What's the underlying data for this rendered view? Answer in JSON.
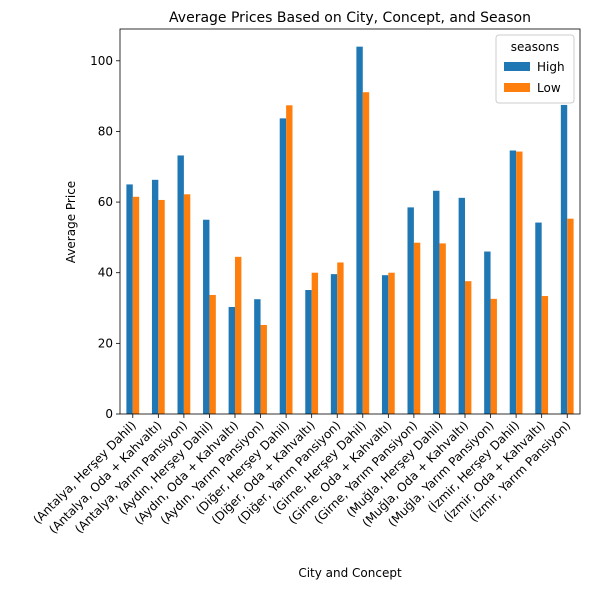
{
  "chart_data": {
    "type": "bar",
    "title": "Average Prices Based on City, Concept, and Season",
    "xlabel": "City and Concept",
    "ylabel": "Average Price",
    "ylim": [
      0,
      109
    ],
    "yticks": [
      0,
      20,
      40,
      60,
      80,
      100
    ],
    "grid": false,
    "legend": {
      "title": "seasons",
      "placement": "top-right"
    },
    "categories": [
      "(Antalya, Herşey Dahil)",
      "(Antalya, Oda + Kahvaltı)",
      "(Antalya, Yarım Pansiyon)",
      "(Aydın, Herşey Dahil)",
      "(Aydın, Oda + Kahvaltı)",
      "(Aydın, Yarım Pansiyon)",
      "(Diğer, Herşey Dahil)",
      "(Diğer, Oda + Kahvaltı)",
      "(Diğer, Yarım Pansiyon)",
      "(Girne, Herşey Dahil)",
      "(Girne, Oda + Kahvaltı)",
      "(Girne, Yarım Pansiyon)",
      "(Muğla, Herşey Dahil)",
      "(Muğla, Oda + Kahvaltı)",
      "(Muğla, Yarım Pansiyon)",
      "(İzmir, Herşey Dahil)",
      "(İzmir, Oda + Kahvaltı)",
      "(İzmir, Yarım Pansiyon)"
    ],
    "series": [
      {
        "name": "High",
        "color": "#1f77b4",
        "values": [
          65,
          66.3,
          73.2,
          55,
          30.3,
          32.5,
          83.7,
          35.1,
          39.6,
          104,
          39.3,
          58.5,
          63.2,
          61.2,
          46,
          74.6,
          54.2,
          87.5
        ]
      },
      {
        "name": "Low",
        "color": "#ff7f0e",
        "values": [
          61.5,
          60.6,
          62.2,
          33.7,
          44.5,
          25.2,
          87.4,
          40,
          42.9,
          91.1,
          40,
          48.5,
          48.3,
          37.6,
          32.6,
          74.3,
          33.4,
          55.3
        ]
      }
    ]
  }
}
